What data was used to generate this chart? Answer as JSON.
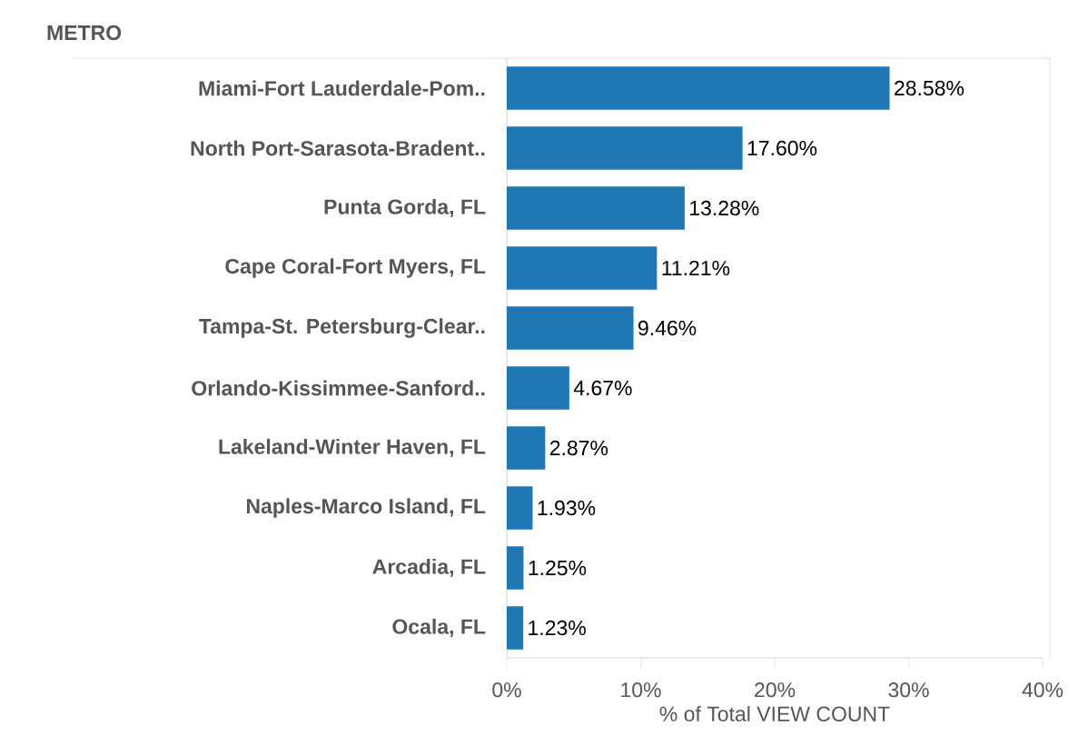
{
  "chart_data": {
    "type": "bar",
    "orientation": "horizontal",
    "ylabel": "METRO",
    "xlabel": "% of Total VIEW  COUNT",
    "categories": [
      "Miami-Fort Lauderdale-Pom..",
      "North Port-Sarasota-Bradent..",
      "Punta Gorda, FL",
      "Cape Coral-Fort Myers, FL",
      "Tampa-St. Petersburg-Clear..",
      "Orlando-Kissimmee-Sanford..",
      "Lakeland-Winter Haven, FL",
      "Naples-Marco Island, FL",
      "Arcadia, FL",
      "Ocala, FL"
    ],
    "values": [
      28.58,
      17.6,
      13.28,
      11.21,
      9.46,
      4.67,
      2.87,
      1.93,
      1.25,
      1.23
    ],
    "value_labels": [
      "28.58%",
      "17.60%",
      "13.28%",
      "11.21%",
      "9.46%",
      "4.67%",
      "2.87%",
      "1.93%",
      "1.25%",
      "1.23%"
    ],
    "color": "#1f77b4",
    "xlim": [
      0,
      40
    ],
    "xticks": [
      {
        "value": 0,
        "label": "0%"
      },
      {
        "value": 10,
        "label": "10%"
      },
      {
        "value": 20,
        "label": "20%"
      },
      {
        "value": 30,
        "label": "30%"
      },
      {
        "value": 40,
        "label": "40%"
      }
    ]
  }
}
